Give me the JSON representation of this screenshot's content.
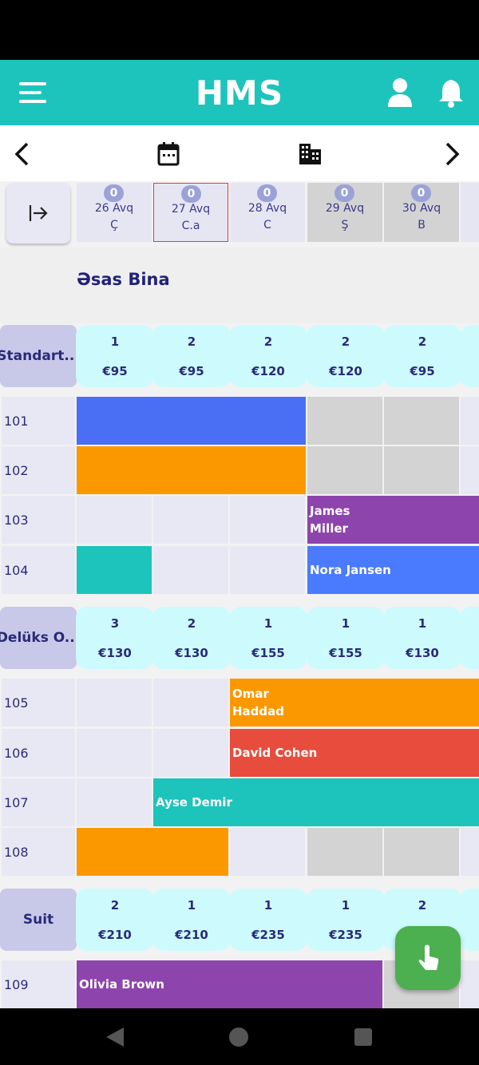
{
  "header": {
    "title": "HMS"
  },
  "dates": [
    {
      "badge": 0,
      "date": "26 Avq",
      "day": "Ç"
    },
    {
      "badge": 0,
      "date": "27 Avq",
      "day": "C.a"
    },
    {
      "badge": 0,
      "date": "28 Avq",
      "day": "C"
    },
    {
      "badge": 0,
      "date": "29 Avq",
      "day": "Ş"
    },
    {
      "badge": 0,
      "date": "30 Avq",
      "day": "B"
    }
  ],
  "building": "Əsas Bina",
  "room_types": [
    {
      "name": "Standart...",
      "availability": [
        {
          "count": 1,
          "price": "€95"
        },
        {
          "count": 2,
          "price": "€95"
        },
        {
          "count": 2,
          "price": "€120"
        },
        {
          "count": 2,
          "price": "€120"
        },
        {
          "count": 2,
          "price": "€95"
        }
      ],
      "rooms": [
        {
          "number": "101"
        },
        {
          "number": "102"
        },
        {
          "number": "103",
          "guest": "James Miller"
        },
        {
          "number": "104",
          "guest": "Nora Jansen"
        }
      ]
    },
    {
      "name": "Delüks O...",
      "availability": [
        {
          "count": 3,
          "price": "€130"
        },
        {
          "count": 2,
          "price": "€130"
        },
        {
          "count": 1,
          "price": "€155"
        },
        {
          "count": 1,
          "price": "€155"
        },
        {
          "count": 1,
          "price": "€130"
        }
      ],
      "rooms": [
        {
          "number": "105",
          "guest": "Omar Haddad"
        },
        {
          "number": "106",
          "guest": "David Cohen"
        },
        {
          "number": "107",
          "guest": "Ayse Demir"
        },
        {
          "number": "108"
        }
      ]
    },
    {
      "name": "Suit",
      "availability": [
        {
          "count": 2,
          "price": "€210"
        },
        {
          "count": 1,
          "price": "€210"
        },
        {
          "count": 1,
          "price": "€235"
        },
        {
          "count": 1,
          "price": "€235"
        },
        {
          "count": 2
        }
      ],
      "rooms": [
        {
          "number": "109",
          "guest": "Olivia Brown"
        }
      ]
    }
  ]
}
